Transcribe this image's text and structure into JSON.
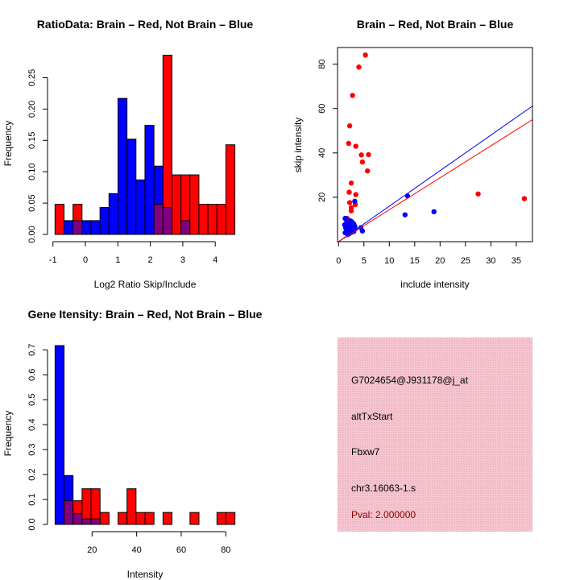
{
  "colors": {
    "brain": "#ff0000",
    "not_brain": "#0000ff",
    "overlap": "#800080",
    "info_bg": "#f4c2cc",
    "pval": "#8b0000"
  },
  "chart_data": [
    {
      "type": "bar",
      "subtype": "overlaid-histogram",
      "title": "RatioData: Brain – Red, Not Brain – Blue",
      "xlabel": "Log2 Ratio Skip/Include",
      "ylabel": "Frequency",
      "bin_start": -0.935,
      "bin_width": 0.277,
      "xticks": [
        -1,
        0,
        1,
        2,
        3,
        4
      ],
      "yticks": [
        "0.00",
        "0.05",
        "0.10",
        "0.15",
        "0.20",
        "0.25"
      ],
      "xlim": [
        -1.0,
        4.6
      ],
      "ylim": [
        0,
        0.29
      ],
      "series": [
        {
          "name": "Not Brain",
          "color": "blue",
          "values": [
            0,
            0.022,
            0.022,
            0.022,
            0.022,
            0.043,
            0.065,
            0.217,
            0.152,
            0.087,
            0.174,
            0.109,
            0.043,
            0,
            0.022,
            0,
            0,
            0,
            0,
            0
          ]
        },
        {
          "name": "Brain",
          "color": "red",
          "values": [
            0.048,
            0,
            0.048,
            0,
            0,
            0,
            0,
            0,
            0,
            0,
            0,
            0.048,
            0.286,
            0.095,
            0.095,
            0.095,
            0.048,
            0.048,
            0.048,
            0.143
          ]
        }
      ]
    },
    {
      "type": "scatter",
      "title": "Brain – Red, Not Brain – Blue",
      "xlabel": "include intensity",
      "ylabel": "skip intensity",
      "xticks": [
        0,
        5,
        10,
        15,
        20,
        25,
        30,
        35
      ],
      "yticks": [
        20,
        40,
        60,
        80
      ],
      "xlim": [
        -0.2,
        38.2
      ],
      "ylim": [
        0,
        87.5
      ],
      "lines": [
        {
          "name": "Not Brain fit",
          "color": "blue",
          "slope": 1.6,
          "intercept": 0
        },
        {
          "name": "Brain fit",
          "color": "red",
          "slope": 1.44,
          "intercept": 0
        }
      ],
      "series": [
        {
          "name": "Brain",
          "color": "red",
          "points": [
            [
              5.3,
              84.1
            ],
            [
              4.0,
              78.7
            ],
            [
              2.75,
              65.9
            ],
            [
              2.2,
              52.2
            ],
            [
              2.0,
              44.3
            ],
            [
              3.4,
              43.0
            ],
            [
              4.5,
              39.1
            ],
            [
              5.9,
              39.2
            ],
            [
              4.7,
              35.9
            ],
            [
              5.7,
              31.9
            ],
            [
              2.5,
              26.4
            ],
            [
              2.1,
              22.3
            ],
            [
              3.4,
              21.2
            ],
            [
              2.2,
              17.6
            ],
            [
              3.3,
              16.7
            ],
            [
              2.5,
              15.3
            ],
            [
              2.5,
              13.9
            ],
            [
              27.5,
              21.5
            ],
            [
              36.6,
              19.4
            ],
            [
              1.7,
              10.5
            ],
            [
              1.6,
              8.0
            ]
          ]
        },
        {
          "name": "Not Brain",
          "color": "blue",
          "points": [
            [
              13.6,
              20.6
            ],
            [
              18.8,
              13.5
            ],
            [
              13.1,
              12.1
            ],
            [
              3.2,
              18.2
            ],
            [
              4.4,
              6.3
            ],
            [
              4.7,
              4.8
            ],
            [
              1.3,
              10.5
            ],
            [
              1.5,
              9.8
            ],
            [
              1.2,
              7.6
            ],
            [
              1.4,
              6.2
            ],
            [
              1.6,
              5.0
            ],
            [
              1.3,
              4.0
            ],
            [
              1.8,
              3.2
            ],
            [
              2.0,
              8.6
            ],
            [
              2.2,
              7.2
            ],
            [
              2.4,
              6.0
            ],
            [
              2.6,
              9.0
            ],
            [
              2.8,
              5.2
            ],
            [
              3.0,
              8.0
            ],
            [
              3.2,
              7.0
            ],
            [
              3.3,
              5.8
            ],
            [
              1.9,
              4.6
            ],
            [
              2.1,
              3.6
            ],
            [
              2.5,
              4.2
            ],
            [
              3.0,
              4.6
            ],
            [
              1.5,
              7.0
            ],
            [
              2.7,
              7.8
            ],
            [
              2.3,
              9.4
            ],
            [
              1.7,
              6.6
            ]
          ]
        }
      ]
    },
    {
      "type": "bar",
      "subtype": "overlaid-histogram",
      "title": "Gene Itensity: Brain – Red, Not Brain – Blue",
      "xlabel": "Intensity",
      "ylabel": "Frequency",
      "bin_start": 3.4,
      "bin_width": 4.035,
      "xticks": [
        20,
        40,
        60,
        80
      ],
      "yticks": [
        "0.0",
        "0.1",
        "0.2",
        "0.3",
        "0.4",
        "0.5",
        "0.6",
        "0.7"
      ],
      "xlim": [
        3.4,
        84.1
      ],
      "ylim": [
        0,
        0.72
      ],
      "series": [
        {
          "name": "Not Brain",
          "color": "blue",
          "values": [
            0.717,
            0.196,
            0.043,
            0.022,
            0.022,
            0,
            0,
            0,
            0,
            0,
            0,
            0,
            0,
            0,
            0,
            0,
            0,
            0,
            0,
            0
          ]
        },
        {
          "name": "Brain",
          "color": "red",
          "values": [
            0,
            0.095,
            0.095,
            0.143,
            0.143,
            0.048,
            0,
            0.048,
            0.143,
            0.048,
            0.048,
            0,
            0.048,
            0,
            0,
            0.048,
            0,
            0,
            0.048,
            0.048
          ]
        }
      ]
    }
  ],
  "info_panel": {
    "probe_id": "G7024654@J931178@j_at",
    "event_type": "altTxStart",
    "gene": "Fbxw7",
    "locus": "chr3.16063-1.s",
    "pval": "Pval: 2.000000"
  }
}
